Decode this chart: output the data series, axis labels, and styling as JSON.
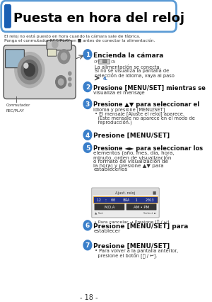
{
  "title": "Puesta en hora del reloj",
  "title_bar_color": "#1a5fb4",
  "title_bg_color": "#ffffff",
  "title_border_color": "#5b9bd5",
  "subtitle_line1": "El reloj no está puesto en hora cuando la cámara sale de fábrica.",
  "subtitle_line2": "Ponga el conmutador REC/PLAY en ■ antes de conectar la alimentación.",
  "bg_color": "#ffffff",
  "step_circle_color": "#3a7fca",
  "step_text_color": "#ffffff",
  "camera_label": "Conmutador\nREC/PLAY",
  "page_number": "- 18 -"
}
